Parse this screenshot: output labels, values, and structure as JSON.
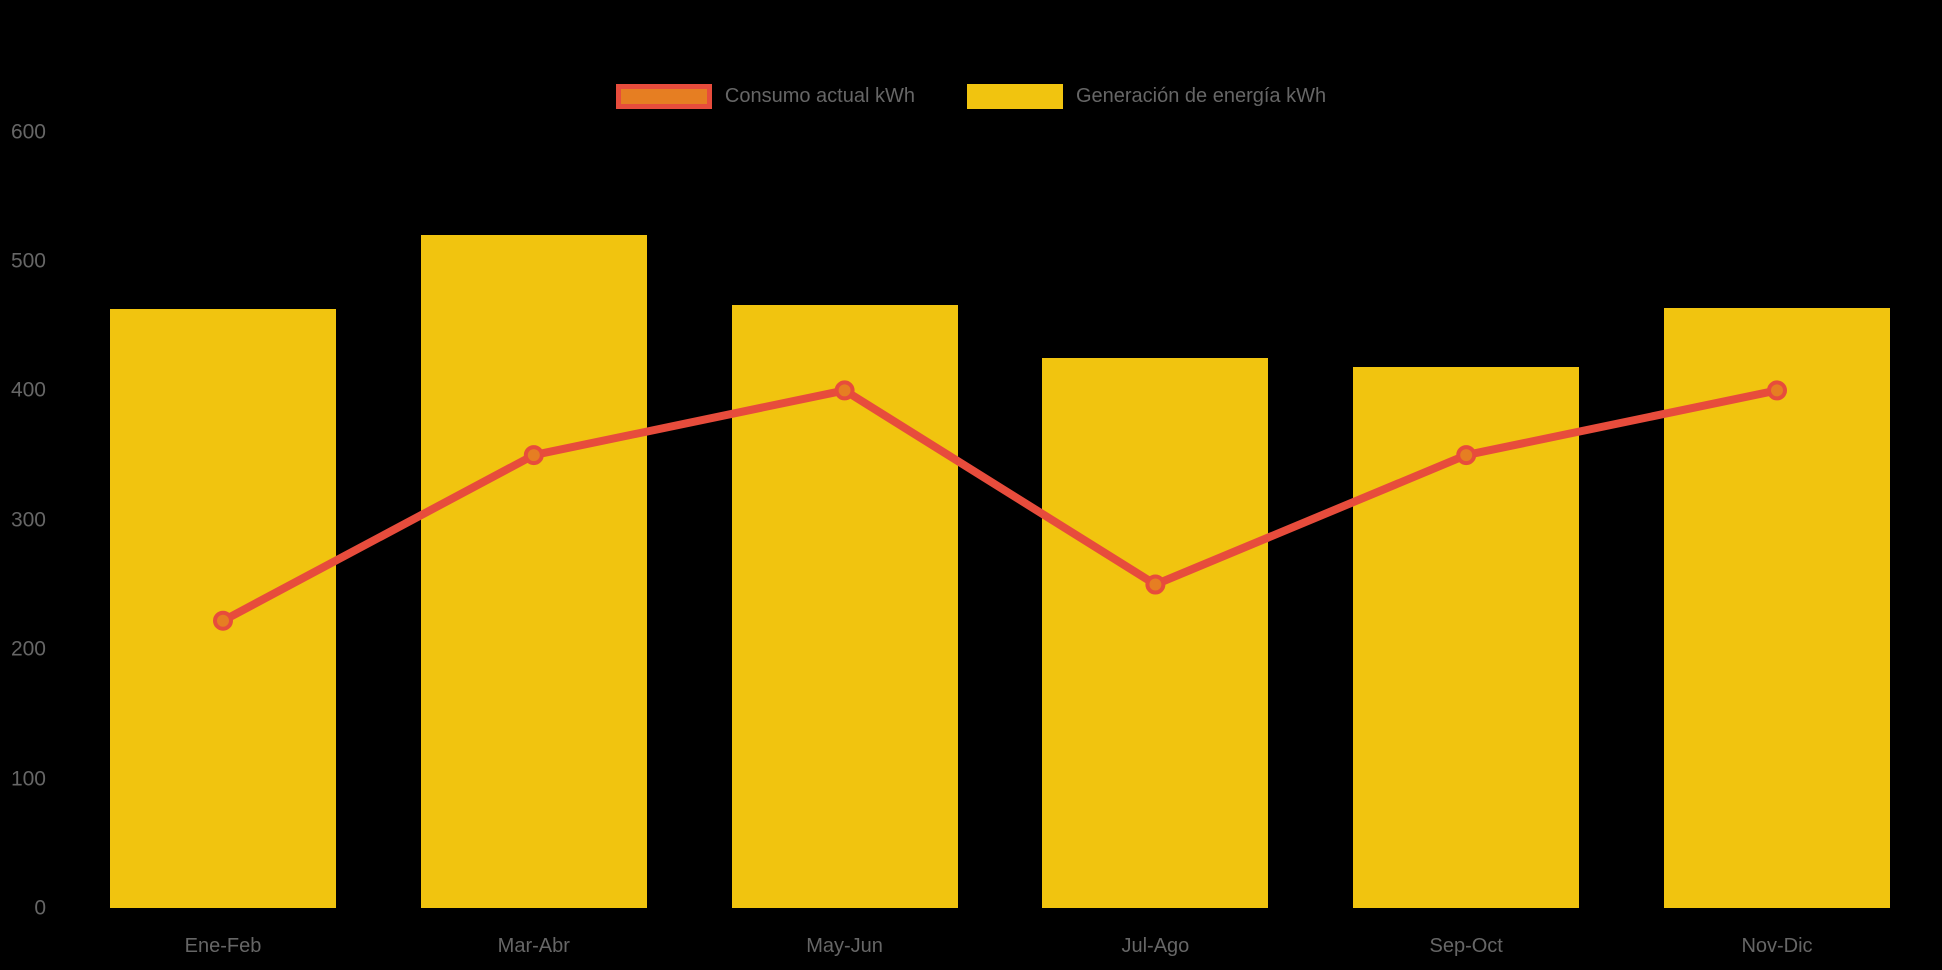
{
  "chart_data": {
    "type": "bar",
    "title": "",
    "xlabel": "",
    "ylabel": "",
    "categories": [
      "Ene-Feb",
      "Mar-Abr",
      "May-Jun",
      "Jul-Ago",
      "Sep-Oct",
      "Nov-Dic"
    ],
    "series": [
      {
        "name": "Consumo actual kWh",
        "type": "line",
        "values": [
          222,
          350,
          400,
          250,
          350,
          400
        ],
        "color": "#E74C3C",
        "marker_color": "#E67E22"
      },
      {
        "name": "Generación de energía kWh",
        "type": "bar",
        "values": [
          463,
          520,
          466,
          425,
          418,
          464
        ],
        "color": "#F1C40F"
      }
    ],
    "ylim": [
      0,
      600
    ],
    "yticks": [
      0,
      100,
      200,
      300,
      400,
      500,
      600
    ],
    "grid": false,
    "legend_position": "top-center",
    "background": "#000000",
    "text_color": "#666666"
  }
}
